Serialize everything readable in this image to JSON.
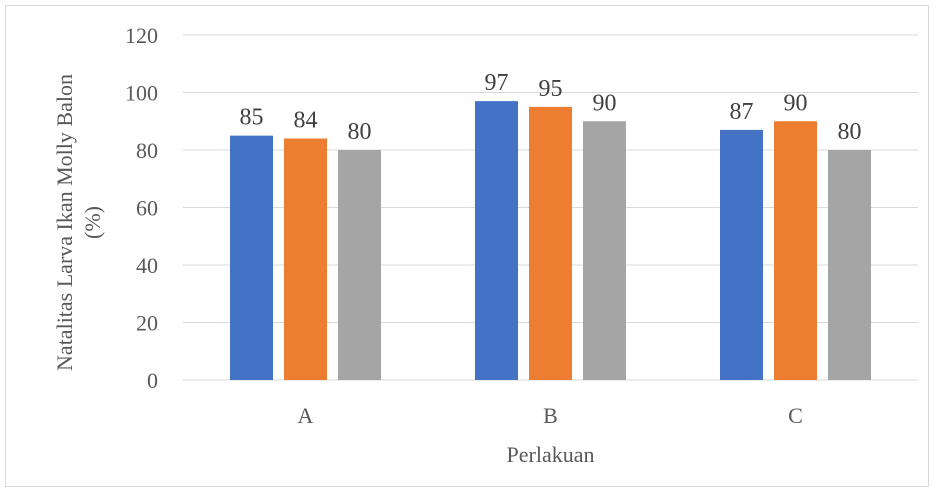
{
  "chart_data": {
    "type": "bar",
    "categories": [
      "A",
      "B",
      "C"
    ],
    "series": [
      {
        "values": [
          85,
          97,
          87
        ],
        "color": "#4472C4"
      },
      {
        "values": [
          84,
          95,
          90
        ],
        "color": "#ED7D31"
      },
      {
        "values": [
          80,
          90,
          80
        ],
        "color": "#A5A5A5"
      }
    ],
    "title": "",
    "xlabel": "Perlakuan",
    "ylabel_line1": "Natalitas Larva Ikan Molly Balon",
    "ylabel_line2": "(%)",
    "ylim": [
      0,
      120
    ],
    "yticks": [
      0,
      20,
      40,
      60,
      80,
      100,
      120
    ],
    "grid": true,
    "legend": "none"
  }
}
